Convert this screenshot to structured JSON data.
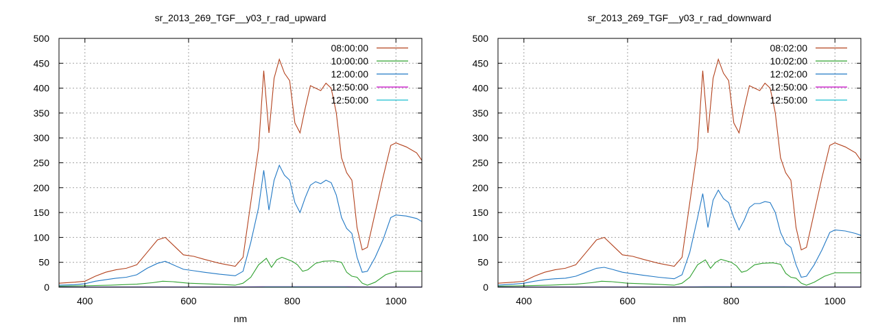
{
  "chart_data": [
    {
      "type": "line",
      "title": "sr_2013_269_TGF__y03_r_rad_upward",
      "xlabel": "nm",
      "ylabel": "",
      "xlim": [
        350,
        1050
      ],
      "ylim": [
        0,
        500
      ],
      "xticks": [
        400,
        600,
        800,
        1000
      ],
      "yticks": [
        0,
        50,
        100,
        150,
        200,
        250,
        300,
        350,
        400,
        450,
        500
      ],
      "grid": true,
      "legend_position": "top-right",
      "series": [
        {
          "name": "08:00:00",
          "color": "#b2401b",
          "x": [
            350,
            380,
            400,
            420,
            440,
            460,
            480,
            500,
            520,
            540,
            555,
            570,
            590,
            610,
            630,
            660,
            690,
            705,
            720,
            735,
            745,
            755,
            765,
            775,
            785,
            795,
            805,
            815,
            825,
            835,
            845,
            855,
            865,
            875,
            885,
            895,
            905,
            915,
            925,
            935,
            945,
            960,
            975,
            990,
            1000,
            1020,
            1040,
            1050
          ],
          "y": [
            8,
            10,
            12,
            22,
            30,
            35,
            38,
            45,
            70,
            95,
            100,
            85,
            65,
            62,
            56,
            48,
            42,
            60,
            170,
            280,
            435,
            310,
            420,
            458,
            430,
            415,
            330,
            310,
            360,
            405,
            400,
            395,
            410,
            400,
            350,
            260,
            230,
            215,
            120,
            75,
            80,
            150,
            220,
            285,
            290,
            282,
            270,
            255
          ]
        },
        {
          "name": "10:00:00",
          "color": "#2ea02e",
          "x": [
            350,
            400,
            450,
            500,
            530,
            550,
            570,
            600,
            650,
            690,
            705,
            720,
            735,
            750,
            760,
            770,
            780,
            800,
            810,
            820,
            830,
            845,
            860,
            880,
            895,
            905,
            915,
            925,
            935,
            945,
            960,
            980,
            1000,
            1030,
            1050
          ],
          "y": [
            2,
            3,
            4,
            6,
            9,
            12,
            11,
            8,
            6,
            4,
            8,
            20,
            45,
            58,
            40,
            55,
            60,
            52,
            45,
            32,
            35,
            48,
            52,
            53,
            50,
            30,
            22,
            20,
            8,
            4,
            10,
            25,
            32,
            32,
            32
          ]
        },
        {
          "name": "12:00:00",
          "color": "#1f77c4",
          "x": [
            350,
            380,
            400,
            420,
            440,
            460,
            480,
            500,
            520,
            540,
            555,
            570,
            590,
            610,
            630,
            660,
            690,
            705,
            720,
            735,
            745,
            755,
            765,
            775,
            785,
            795,
            805,
            815,
            825,
            835,
            845,
            855,
            865,
            875,
            885,
            895,
            905,
            915,
            925,
            935,
            945,
            960,
            975,
            990,
            1000,
            1020,
            1040,
            1050
          ],
          "y": [
            4,
            5,
            7,
            12,
            15,
            18,
            20,
            25,
            38,
            48,
            52,
            45,
            36,
            33,
            30,
            26,
            23,
            32,
            90,
            160,
            235,
            155,
            215,
            245,
            225,
            215,
            170,
            150,
            180,
            205,
            212,
            208,
            215,
            210,
            185,
            140,
            118,
            108,
            60,
            30,
            32,
            60,
            95,
            140,
            145,
            143,
            138,
            132
          ]
        },
        {
          "name": "12:50:00",
          "color": "#c400c4",
          "x": [
            350,
            500,
            700,
            750,
            780,
            800,
            850,
            900,
            950,
            1000,
            1050
          ],
          "y": [
            0.5,
            0.5,
            0.5,
            1,
            1,
            1,
            1,
            1,
            0.5,
            0.5,
            0.5
          ]
        },
        {
          "name": "12:50:00",
          "color": "#17becf",
          "x": [
            350,
            500,
            700,
            750,
            780,
            800,
            850,
            900,
            950,
            1000,
            1050
          ],
          "y": [
            0.3,
            0.3,
            0.3,
            0.6,
            0.6,
            0.6,
            0.6,
            0.6,
            0.3,
            0.3,
            0.3
          ]
        }
      ]
    },
    {
      "type": "line",
      "title": "sr_2013_269_TGF__y03_r_rad_downward",
      "xlabel": "nm",
      "ylabel": "",
      "xlim": [
        350,
        1050
      ],
      "ylim": [
        0,
        500
      ],
      "xticks": [
        400,
        600,
        800,
        1000
      ],
      "yticks": [
        0,
        50,
        100,
        150,
        200,
        250,
        300,
        350,
        400,
        450,
        500
      ],
      "grid": true,
      "legend_position": "top-right",
      "series": [
        {
          "name": "08:02:00",
          "color": "#b2401b",
          "x": [
            350,
            380,
            400,
            420,
            440,
            460,
            480,
            500,
            520,
            540,
            555,
            570,
            590,
            610,
            630,
            660,
            690,
            705,
            720,
            735,
            745,
            755,
            765,
            775,
            785,
            795,
            805,
            815,
            825,
            835,
            845,
            855,
            865,
            875,
            885,
            895,
            905,
            915,
            925,
            935,
            945,
            960,
            975,
            990,
            1000,
            1020,
            1040,
            1050
          ],
          "y": [
            8,
            10,
            12,
            22,
            30,
            35,
            38,
            45,
            70,
            95,
            100,
            85,
            65,
            62,
            56,
            48,
            42,
            60,
            170,
            280,
            435,
            310,
            420,
            458,
            430,
            415,
            330,
            310,
            360,
            405,
            400,
            395,
            410,
            400,
            350,
            260,
            230,
            215,
            120,
            75,
            80,
            150,
            220,
            285,
            290,
            282,
            270,
            255
          ]
        },
        {
          "name": "10:02:00",
          "color": "#2ea02e",
          "x": [
            350,
            400,
            450,
            500,
            530,
            550,
            570,
            600,
            650,
            690,
            705,
            720,
            735,
            750,
            760,
            770,
            780,
            800,
            810,
            820,
            830,
            845,
            860,
            880,
            895,
            905,
            915,
            925,
            935,
            945,
            960,
            980,
            1000,
            1030,
            1050
          ],
          "y": [
            2,
            3,
            4,
            6,
            9,
            12,
            11,
            8,
            6,
            4,
            8,
            20,
            45,
            55,
            38,
            50,
            56,
            50,
            43,
            30,
            33,
            45,
            48,
            49,
            46,
            28,
            20,
            18,
            8,
            4,
            10,
            22,
            29,
            29,
            29
          ]
        },
        {
          "name": "12:02:00",
          "color": "#1f77c4",
          "x": [
            350,
            380,
            400,
            420,
            440,
            460,
            480,
            500,
            520,
            540,
            555,
            570,
            590,
            610,
            630,
            660,
            690,
            705,
            720,
            735,
            745,
            755,
            765,
            775,
            785,
            795,
            805,
            815,
            825,
            835,
            845,
            855,
            865,
            875,
            885,
            895,
            905,
            915,
            925,
            935,
            945,
            960,
            975,
            990,
            1000,
            1020,
            1040,
            1050
          ],
          "y": [
            4,
            6,
            8,
            12,
            15,
            17,
            18,
            22,
            30,
            38,
            40,
            36,
            30,
            27,
            24,
            20,
            17,
            25,
            70,
            140,
            188,
            120,
            175,
            195,
            178,
            170,
            140,
            115,
            135,
            160,
            168,
            168,
            172,
            170,
            150,
            110,
            88,
            80,
            45,
            20,
            22,
            45,
            75,
            110,
            115,
            113,
            108,
            104
          ]
        },
        {
          "name": "12:50:00",
          "color": "#c400c4",
          "x": [
            350,
            500,
            700,
            750,
            780,
            800,
            850,
            900,
            950,
            1000,
            1050
          ],
          "y": [
            0.5,
            0.5,
            0.5,
            1,
            1,
            1,
            1,
            1,
            0.5,
            0.5,
            0.5
          ]
        },
        {
          "name": "12:50:00",
          "color": "#17becf",
          "x": [
            350,
            500,
            700,
            750,
            780,
            800,
            850,
            900,
            950,
            1000,
            1050
          ],
          "y": [
            0.3,
            0.3,
            0.3,
            0.6,
            0.6,
            0.6,
            0.6,
            0.6,
            0.3,
            0.3,
            0.3
          ]
        }
      ]
    }
  ]
}
